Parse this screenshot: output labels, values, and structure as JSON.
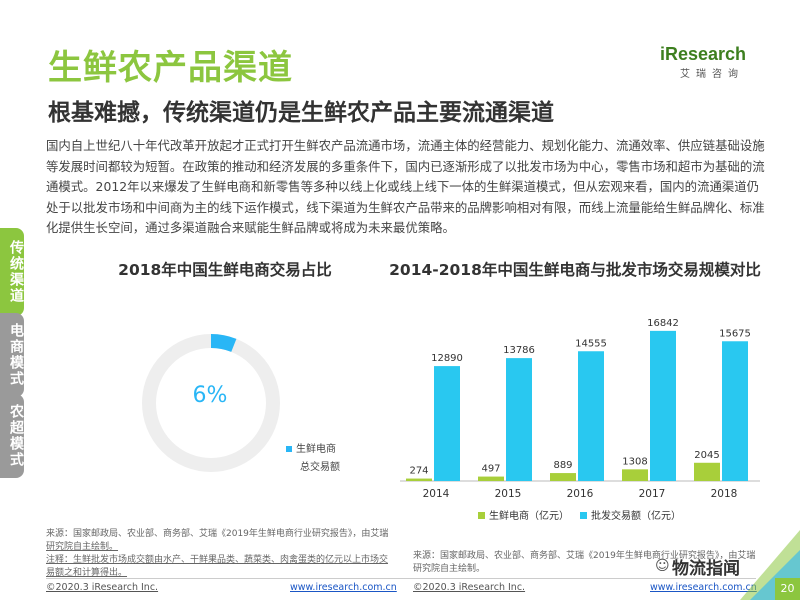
{
  "page": {
    "title": "生鲜农产品渠道",
    "subtitle": "根基难撼，传统渠道仍是生鲜农产品主要流通渠道",
    "intro": "国内自上世纪八十年代改革开放起才正式打开生鲜农产品流通市场，流通主体的经营能力、规划化能力、流通效率、供应链基础设施等发展时间都较为短暂。在政策的推动和经济发展的多重条件下，国内已逐渐形成了以批发市场为中心，零售市场和超市为基础的流通模式。2012年以来爆发了生鲜电商和新零售等多种以线上化或线上线下一体的生鲜渠道模式，但从宏观来看，国内的流通渠道仍处于以批发市场和中间商为主的线下运作模式，线下渠道为生鲜农产品带来的品牌影响相对有限，而线上流量能给生鲜品牌化、标准化提供生长空间，通过多渠道融合来赋能生鲜品牌或将成为未来最优策略。",
    "logo_text": "iResearch",
    "logo_sub": "艾瑞咨询",
    "side_tabs": [
      "传统渠道",
      "电商模式",
      "农超模式"
    ],
    "page_number": "20",
    "watermark": "物流指闻",
    "source_left_1": "来源：国家邮政局、农业部、商务部、艾瑞《2019年生鲜电商行业研究报告》，由艾瑞",
    "source_left_2": "研究院自主绘制。",
    "note_left": "注释：生鲜批发市场成交额由水产、干鲜果品类、蔬菜类、肉禽蛋类的亿元以上市场交易额之和计算得出。",
    "source_right": "来源：国家邮政局、农业部、商务部、艾瑞《2019年生鲜电商行业研究报告》，由艾瑞研究院自主绘制。",
    "footer_copy": "©2020.3 iResearch Inc.",
    "footer_url": "www.iresearch.com.cn"
  },
  "chart_data": [
    {
      "type": "pie",
      "title": "2018年中国生鲜电商交易占比",
      "slices": [
        {
          "name": "生鲜电商",
          "value": 6,
          "color": "#29b6f6"
        },
        {
          "name": "总交易额",
          "value": 94,
          "color": "#eeeeee"
        }
      ],
      "center_label": "6%",
      "legend": [
        "生鲜电商",
        "总交易额"
      ]
    },
    {
      "type": "bar",
      "title": "2014-2018年中国生鲜电商与批发市场交易规模对比",
      "categories": [
        "2014",
        "2015",
        "2016",
        "2017",
        "2018"
      ],
      "series": [
        {
          "name": "生鲜电商（亿元）",
          "values": [
            274,
            497,
            889,
            1308,
            2045
          ],
          "color": "#a8cf3a"
        },
        {
          "name": "批发交易额（亿元）",
          "values": [
            12890,
            13786,
            14555,
            16842,
            15675
          ],
          "color": "#29c8f0"
        }
      ],
      "ylim": [
        0,
        17500
      ],
      "legend_position": "bottom"
    }
  ]
}
